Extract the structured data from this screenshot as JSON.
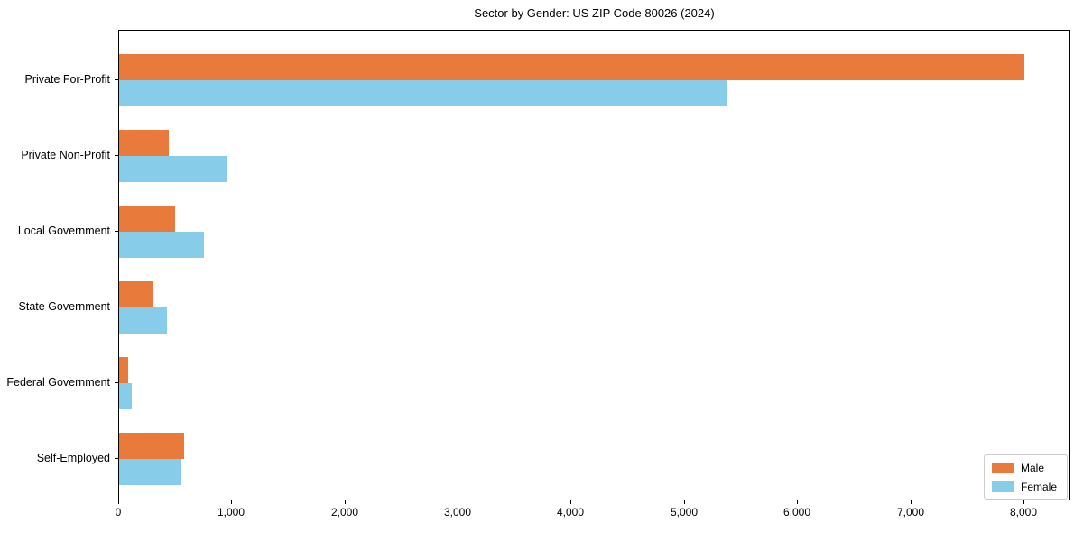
{
  "chart_data": {
    "type": "bar",
    "orientation": "horizontal",
    "title": "Sector by Gender: US ZIP Code 80026 (2024)",
    "categories": [
      "Private For-Profit",
      "Private Non-Profit",
      "Local Government",
      "State Government",
      "Federal Government",
      "Self-Employed"
    ],
    "series": [
      {
        "name": "Male",
        "color": "#e87b3c",
        "values": [
          8000,
          440,
          495,
          300,
          80,
          575
        ]
      },
      {
        "name": "Female",
        "color": "#87cde9",
        "values": [
          5370,
          955,
          750,
          425,
          110,
          550
        ]
      }
    ],
    "xlabel": "",
    "ylabel": "",
    "xlim": [
      0,
      8415
    ],
    "xticks": {
      "values": [
        0,
        1000,
        2000,
        3000,
        4000,
        5000,
        6000,
        7000,
        8000
      ],
      "labels": [
        "0",
        "1,000",
        "2,000",
        "3,000",
        "4,000",
        "5,000",
        "6,000",
        "7,000",
        "8,000"
      ]
    },
    "grid": false,
    "legend": {
      "position": "lower right"
    }
  }
}
